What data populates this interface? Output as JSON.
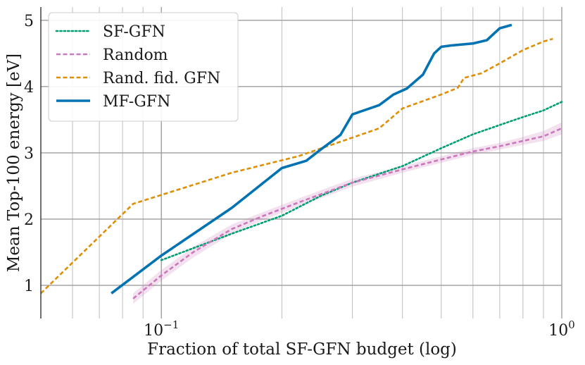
{
  "chart_data": {
    "type": "line",
    "title": "",
    "xlabel": "Fraction of total SF-GFN budget (log)",
    "ylabel": "Mean Top-100 energy [eV]",
    "xscale": "log",
    "xlim": [
      0.05,
      1.0
    ],
    "ylim": [
      0.5,
      5.2
    ],
    "x_major_ticks": [
      0.1,
      1.0
    ],
    "x_major_tick_labels": [
      "10−1",
      "100"
    ],
    "x_minor_ticks": [
      0.06,
      0.07,
      0.08,
      0.09,
      0.2,
      0.3,
      0.4,
      0.5,
      0.6,
      0.7,
      0.8,
      0.9
    ],
    "y_ticks": [
      1,
      2,
      3,
      4,
      5
    ],
    "y_tick_labels": [
      "1",
      "2",
      "3",
      "4",
      "5"
    ],
    "grid": true,
    "legend_position": "top-left",
    "series": [
      {
        "name": "SF-GFN",
        "color": "#009e73",
        "style": "dotted",
        "x": [
          0.1,
          0.15,
          0.2,
          0.25,
          0.3,
          0.4,
          0.5,
          0.6,
          0.7,
          0.8,
          0.9,
          1.0
        ],
        "y": [
          1.38,
          1.78,
          2.05,
          2.35,
          2.55,
          2.8,
          3.07,
          3.28,
          3.42,
          3.54,
          3.64,
          3.77
        ]
      },
      {
        "name": "Random",
        "color": "#cc78bc",
        "style": "dashed",
        "x": [
          0.085,
          0.1,
          0.12,
          0.15,
          0.18,
          0.22,
          0.3,
          0.4,
          0.5,
          0.6,
          0.7,
          0.8,
          0.9,
          1.0
        ],
        "y": [
          0.8,
          1.15,
          1.5,
          1.85,
          2.05,
          2.25,
          2.55,
          2.75,
          2.9,
          3.02,
          3.1,
          3.18,
          3.25,
          3.37
        ],
        "band_lower": [
          0.72,
          1.07,
          1.42,
          1.78,
          1.99,
          2.19,
          2.49,
          2.7,
          2.85,
          2.97,
          3.05,
          3.12,
          3.18,
          3.28
        ],
        "band_upper": [
          0.88,
          1.23,
          1.58,
          1.92,
          2.11,
          2.31,
          2.61,
          2.8,
          2.95,
          3.07,
          3.15,
          3.24,
          3.33,
          3.46
        ]
      },
      {
        "name": "Rand. fid. GFN",
        "color": "#de8f05",
        "style": "dashed",
        "x": [
          0.05,
          0.085,
          0.15,
          0.22,
          0.3,
          0.35,
          0.4,
          0.5,
          0.55,
          0.57,
          0.63,
          0.7,
          0.8,
          0.9,
          0.95
        ],
        "y": [
          0.88,
          2.23,
          2.7,
          2.95,
          3.23,
          3.37,
          3.67,
          3.88,
          3.98,
          4.13,
          4.2,
          4.35,
          4.55,
          4.68,
          4.72
        ]
      },
      {
        "name": "MF-GFN",
        "color": "#0173b2",
        "style": "solid",
        "x": [
          0.075,
          0.1,
          0.15,
          0.2,
          0.23,
          0.25,
          0.28,
          0.3,
          0.35,
          0.38,
          0.41,
          0.45,
          0.48,
          0.5,
          0.53,
          0.6,
          0.65,
          0.7,
          0.75
        ],
        "y": [
          0.88,
          1.45,
          2.17,
          2.77,
          2.88,
          3.05,
          3.27,
          3.58,
          3.72,
          3.88,
          3.97,
          4.18,
          4.5,
          4.6,
          4.62,
          4.65,
          4.7,
          4.88,
          4.93
        ]
      }
    ]
  }
}
